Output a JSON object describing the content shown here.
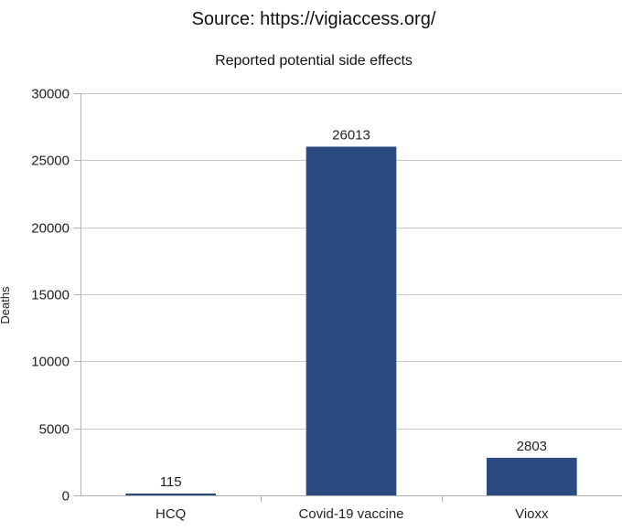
{
  "chart_data": {
    "type": "bar",
    "title": "Source: https://vigiaccess.org/",
    "subtitle": "Reported potential side effects",
    "xlabel": "",
    "ylabel": "Deaths",
    "categories": [
      "HCQ",
      "Covid-19 vaccine",
      "Vioxx"
    ],
    "values": [
      115,
      26013,
      2803
    ],
    "data_labels": [
      "115",
      "26013",
      "2803"
    ],
    "ylim": [
      0,
      30000
    ],
    "yticks": [
      0,
      5000,
      10000,
      15000,
      20000,
      25000,
      30000
    ],
    "ytick_labels": [
      "0",
      "5000",
      "10000",
      "15000",
      "20000",
      "25000",
      "30000"
    ],
    "grid": true,
    "legend": "none",
    "bar_color": "#2b4a80"
  }
}
